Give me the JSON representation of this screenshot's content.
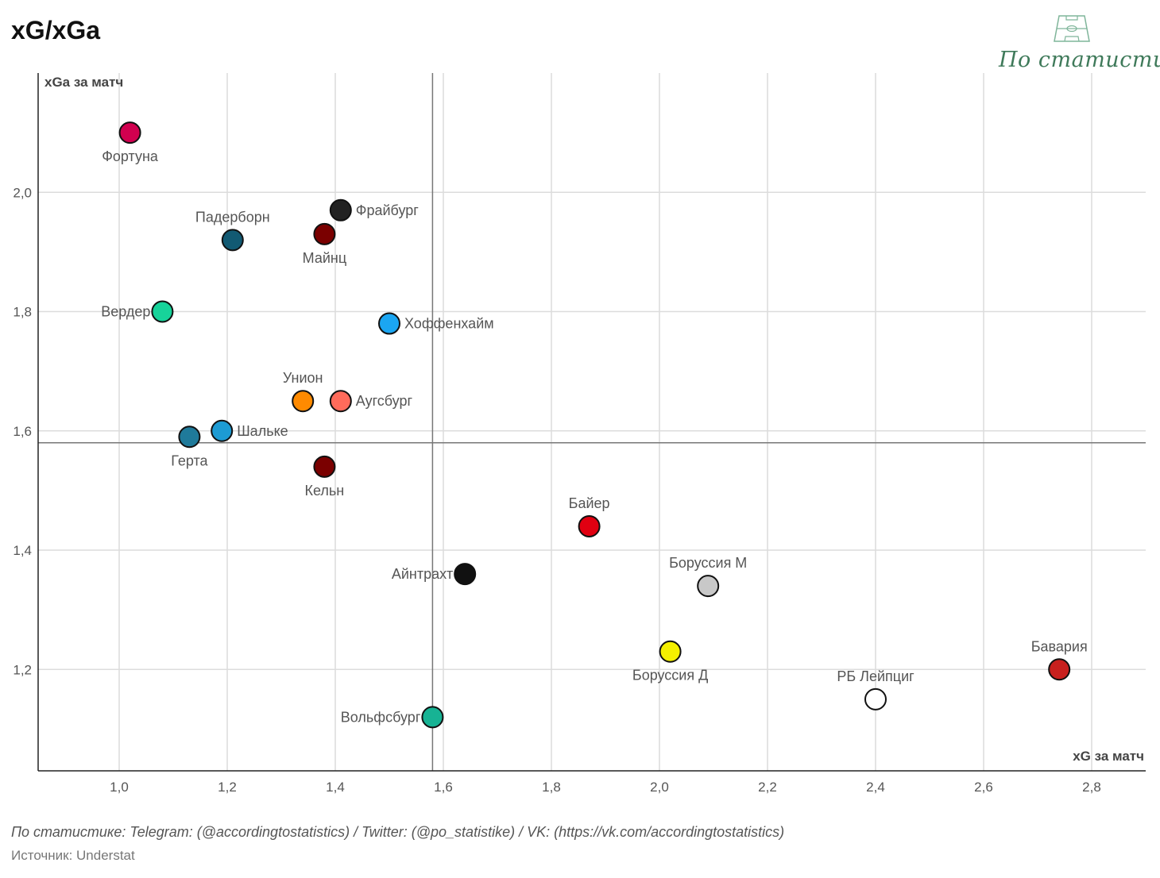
{
  "header": {
    "title": "xG/xGa"
  },
  "logo": {
    "text": "По статистике",
    "icon": "football-pitch-icon",
    "color": "#3f7a5a"
  },
  "chart_data": {
    "type": "scatter",
    "title": "xG/xGa",
    "xlabel": "xG за матч",
    "ylabel": "xGa за матч",
    "xlim": [
      0.85,
      2.9
    ],
    "ylim": [
      1.03,
      2.2
    ],
    "xticks": [
      1.0,
      1.2,
      1.4,
      1.6,
      1.8,
      2.0,
      2.2,
      2.4,
      2.6,
      2.8
    ],
    "xtick_labels": [
      "1,0",
      "1,2",
      "1,4",
      "1,6",
      "1,8",
      "2,0",
      "2,2",
      "2,4",
      "2,6",
      "2,8"
    ],
    "yticks": [
      1.2,
      1.4,
      1.6,
      1.8,
      2.0
    ],
    "ytick_labels": [
      "1,2",
      "1,4",
      "1,6",
      "1,8",
      "2,0"
    ],
    "grid": true,
    "reference_lines": {
      "x": 1.58,
      "y": 1.58
    },
    "points": [
      {
        "name": "Фортуна",
        "x": 1.02,
        "y": 2.1,
        "color": "#d1004f",
        "label_pos": "below"
      },
      {
        "name": "Фрайбург",
        "x": 1.41,
        "y": 1.97,
        "color": "#222222",
        "label_pos": "right"
      },
      {
        "name": "Падерборн",
        "x": 1.21,
        "y": 1.92,
        "color": "#125a73",
        "label_pos": "above"
      },
      {
        "name": "Майнц",
        "x": 1.38,
        "y": 1.93,
        "color": "#7a0000",
        "label_pos": "below"
      },
      {
        "name": "Вердер",
        "x": 1.08,
        "y": 1.8,
        "color": "#17d39a",
        "label_pos": "left"
      },
      {
        "name": "Хоффенхайм",
        "x": 1.5,
        "y": 1.78,
        "color": "#1ba6f2",
        "label_pos": "right"
      },
      {
        "name": "Унион",
        "x": 1.34,
        "y": 1.65,
        "color": "#ff8a00",
        "label_pos": "above"
      },
      {
        "name": "Аугсбург",
        "x": 1.41,
        "y": 1.65,
        "color": "#ff6b5b",
        "label_pos": "right"
      },
      {
        "name": "Шальке",
        "x": 1.19,
        "y": 1.6,
        "color": "#1d9bd3",
        "label_pos": "right"
      },
      {
        "name": "Герта",
        "x": 1.13,
        "y": 1.59,
        "color": "#1f7a9a",
        "label_pos": "below"
      },
      {
        "name": "Кельн",
        "x": 1.38,
        "y": 1.54,
        "color": "#7a0000",
        "label_pos": "below"
      },
      {
        "name": "Байер",
        "x": 1.87,
        "y": 1.44,
        "color": "#e10011",
        "label_pos": "above"
      },
      {
        "name": "Айнтрахт",
        "x": 1.64,
        "y": 1.36,
        "color": "#111111",
        "label_pos": "left"
      },
      {
        "name": "Боруссия М",
        "x": 2.09,
        "y": 1.34,
        "color": "#c8c8c8",
        "label_pos": "above"
      },
      {
        "name": "Боруссия Д",
        "x": 2.02,
        "y": 1.23,
        "color": "#f5f000",
        "label_pos": "below"
      },
      {
        "name": "Бавария",
        "x": 2.74,
        "y": 1.2,
        "color": "#c8201e",
        "label_pos": "above"
      },
      {
        "name": "РБ Лейпциг",
        "x": 2.4,
        "y": 1.15,
        "color": "#ffffff",
        "label_pos": "above"
      },
      {
        "name": "Вольфсбург",
        "x": 1.58,
        "y": 1.12,
        "color": "#17b394",
        "label_pos": "left"
      }
    ]
  },
  "footer": {
    "credits": "По статистике: Telegram: (@accordingtostatistics) / Twitter: (@po_statistike) / VK: (https://vk.com/accordingtostatistics)",
    "source": "Источник: Understat"
  }
}
